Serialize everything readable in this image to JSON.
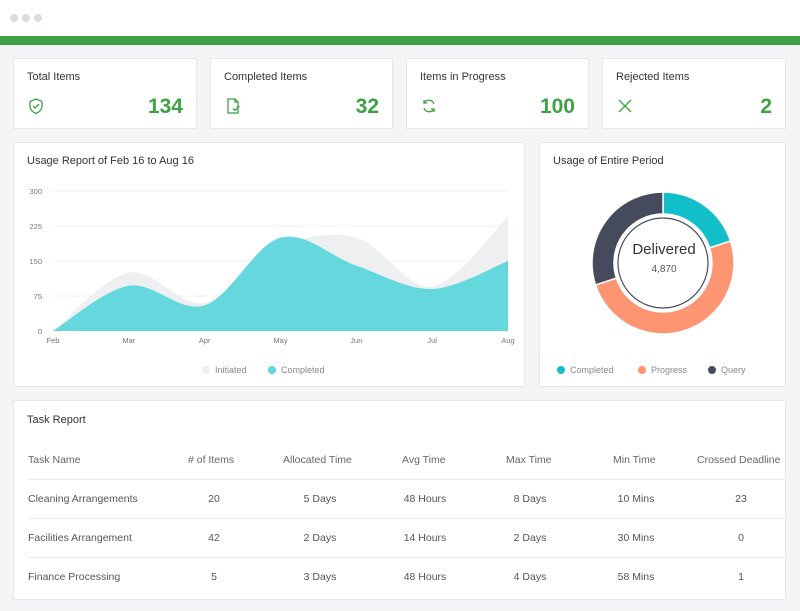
{
  "stats": [
    {
      "label": "Total Items",
      "value": "134",
      "icon": "shield-check-icon"
    },
    {
      "label": "Completed Items",
      "value": "32",
      "icon": "document-check-icon"
    },
    {
      "label": "Items in Progress",
      "value": "100",
      "icon": "refresh-icon"
    },
    {
      "label": "Rejected Items",
      "value": "2",
      "icon": "x-icon"
    }
  ],
  "colors": {
    "accent": "#3ea244",
    "teal": "#5dd6dc",
    "gray_area": "#eeeff0",
    "donut_completed": "#12bfc9",
    "donut_progress": "#fd9572",
    "donut_query": "#464a5d"
  },
  "usage": {
    "title": "Usage Report of Feb 16 to Aug 16",
    "legend": [
      "Initiated",
      "Completed"
    ]
  },
  "chart_data": [
    {
      "type": "area",
      "title": "Usage Report of Feb 16 to Aug 16",
      "categories": [
        "Feb",
        "Mar",
        "Apr",
        "May",
        "Jun",
        "Jul",
        "Aug"
      ],
      "yticks": [
        "300",
        "225",
        "150",
        "75",
        "0"
      ],
      "ylim": [
        0,
        300
      ],
      "series": [
        {
          "name": "Initiated",
          "values": [
            0,
            125,
            60,
            180,
            200,
            95,
            245
          ]
        },
        {
          "name": "Completed",
          "values": [
            0,
            97,
            55,
            200,
            140,
            90,
            150
          ]
        }
      ]
    },
    {
      "type": "pie",
      "title": "Usage of Entire Period",
      "center_label": "Delivered",
      "center_value": "4,870",
      "categories": [
        "Completed",
        "Progress",
        "Query"
      ],
      "values": [
        20,
        50,
        30
      ]
    }
  ],
  "period": {
    "title": "Usage of Entire Period",
    "center_label": "Delivered",
    "center_value": "4,870",
    "legend": [
      "Completed",
      "Progress",
      "Query"
    ]
  },
  "tasks": {
    "title": "Task Report",
    "headers": [
      "Task Name",
      "# of Items",
      "Allocated Time",
      "Avg Time",
      "Max Time",
      "Min Time",
      "Crossed Deadline"
    ],
    "rows": [
      [
        "Cleaning Arrangements",
        "20",
        "5 Days",
        "48 Hours",
        "8 Days",
        "10 Mins",
        "23"
      ],
      [
        "Facilities Arrangement",
        "42",
        "2 Days",
        "14 Hours",
        "2 Days",
        "30 Mins",
        "0"
      ],
      [
        "Finance Processing",
        "5",
        "3 Days",
        "48 Hours",
        "4 Days",
        "58 Mins",
        "1"
      ]
    ]
  }
}
